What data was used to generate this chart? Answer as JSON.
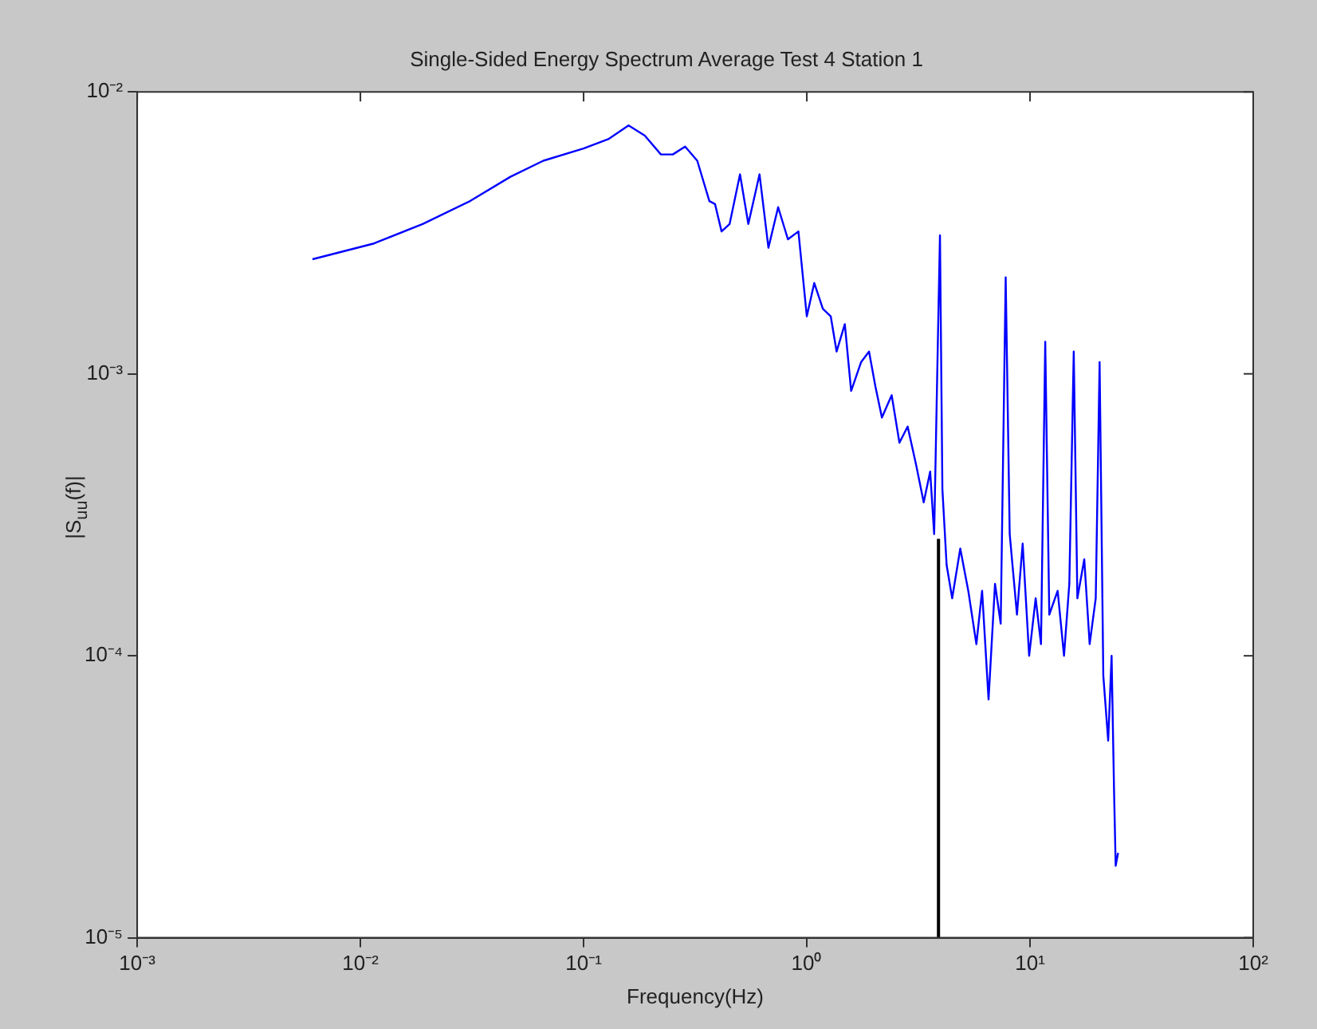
{
  "chart_data": {
    "type": "line",
    "title": "Single-Sided Energy Spectrum Average Test 4 Station 1",
    "xlabel": "Frequency(Hz)",
    "ylabel": "|S$_{uu}$(f)|",
    "log": "xy",
    "grid": false,
    "legend": false,
    "marker": "none",
    "line_style": "solid",
    "xlim": [
      0.001,
      100
    ],
    "ylim": [
      1e-05,
      0.01
    ],
    "xticks": [
      {
        "value": 0.001,
        "label": "10⁻³"
      },
      {
        "value": 0.01,
        "label": "10⁻²"
      },
      {
        "value": 0.1,
        "label": "10⁻¹"
      },
      {
        "value": 1,
        "label": "10⁰"
      },
      {
        "value": 10,
        "label": "10¹"
      },
      {
        "value": 100,
        "label": "10²"
      }
    ],
    "yticks": [
      {
        "value": 1e-05,
        "label": "10⁻⁵"
      },
      {
        "value": 0.0001,
        "label": "10⁻⁴"
      },
      {
        "value": 0.001,
        "label": "10⁻³"
      },
      {
        "value": 0.01,
        "label": "10⁻²"
      }
    ],
    "series": [
      {
        "color": "#0000ff",
        "x": [
          0.0061,
          0.0115,
          0.019,
          0.031,
          0.047,
          0.066,
          0.1,
          0.129,
          0.159,
          0.188,
          0.222,
          0.251,
          0.285,
          0.323,
          0.366,
          0.388,
          0.415,
          0.451,
          0.502,
          0.547,
          0.614,
          0.673,
          0.744,
          0.823,
          0.917,
          1.0,
          1.08,
          1.18,
          1.28,
          1.36,
          1.48,
          1.58,
          1.75,
          1.9,
          2.03,
          2.17,
          2.4,
          2.6,
          2.83,
          3.08,
          3.34,
          3.57,
          3.72,
          3.89,
          3.95,
          4.05,
          4.23,
          4.48,
          4.87,
          5.29,
          5.75,
          6.1,
          6.52,
          6.97,
          7.39,
          7.78,
          8.11,
          8.74,
          9.27,
          9.91,
          10.6,
          11.2,
          11.7,
          12.2,
          13.3,
          14.2,
          15.0,
          15.7,
          16.3,
          17.5,
          18.5,
          19.7,
          20.5,
          21.3,
          22.4,
          23.2,
          23.8,
          24.2,
          24.8
        ],
        "values": [
          0.00255,
          0.0029,
          0.0034,
          0.0041,
          0.005,
          0.0057,
          0.0063,
          0.0068,
          0.0076,
          0.007,
          0.006,
          0.006,
          0.0064,
          0.0057,
          0.0041,
          0.004,
          0.0032,
          0.0034,
          0.0051,
          0.0034,
          0.0051,
          0.0028,
          0.0039,
          0.003,
          0.0032,
          0.0016,
          0.0021,
          0.0017,
          0.0016,
          0.0012,
          0.0015,
          0.00087,
          0.0011,
          0.0012,
          0.0009,
          0.0007,
          0.00084,
          0.00057,
          0.00065,
          0.00048,
          0.00035,
          0.00045,
          0.00027,
          0.0017,
          0.0031,
          0.00039,
          0.00021,
          0.00016,
          0.00024,
          0.00017,
          0.00011,
          0.00017,
          7e-05,
          0.00018,
          0.00013,
          0.0022,
          0.00027,
          0.00014,
          0.00025,
          0.0001,
          0.00016,
          0.00011,
          0.0013,
          0.00014,
          0.00017,
          0.0001,
          0.00018,
          0.0012,
          0.00016,
          0.00022,
          0.00011,
          0.00016,
          0.0011,
          8.5e-05,
          5e-05,
          0.0001,
          3.3e-05,
          1.8e-05,
          2e-05
        ]
      },
      {
        "color": "#000000",
        "type": "line",
        "x": [
          3.89,
          3.89
        ],
        "values": [
          1e-05,
          0.00026
        ]
      }
    ]
  }
}
